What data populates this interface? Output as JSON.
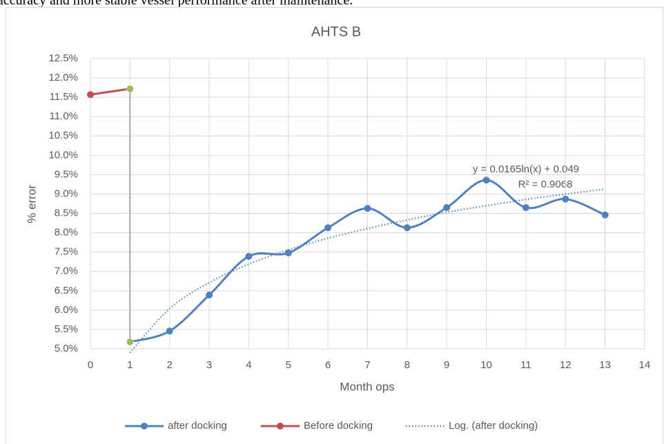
{
  "caption": "accuracy and more stable vessel performance after maintenance.",
  "chart_data": {
    "type": "line",
    "title": "AHTS B",
    "xlabel": "Month ops",
    "ylabel": "% error",
    "xlim": [
      0,
      14
    ],
    "xticks": [
      0,
      1,
      2,
      3,
      4,
      5,
      6,
      7,
      8,
      9,
      10,
      11,
      12,
      13,
      14
    ],
    "ylim": [
      5.0,
      12.5
    ],
    "yticks": [
      {
        "value": 5.0,
        "label": "5.0%"
      },
      {
        "value": 5.5,
        "label": "5.5%"
      },
      {
        "value": 6.0,
        "label": "6.0%"
      },
      {
        "value": 6.5,
        "label": "6.5%"
      },
      {
        "value": 7.0,
        "label": "7.0%"
      },
      {
        "value": 7.5,
        "label": "7.5%"
      },
      {
        "value": 8.0,
        "label": "8.0%"
      },
      {
        "value": 8.5,
        "label": "8.5%"
      },
      {
        "value": 9.0,
        "label": "9.0%"
      },
      {
        "value": 9.5,
        "label": "9.5%"
      },
      {
        "value": 10.0,
        "label": "10.0%"
      },
      {
        "value": 10.5,
        "label": "10.5%"
      },
      {
        "value": 11.0,
        "label": "11.0%"
      },
      {
        "value": 11.5,
        "label": "11.5%"
      },
      {
        "value": 12.0,
        "label": "12.0%"
      },
      {
        "value": 12.5,
        "label": "12.5%"
      }
    ],
    "grid": true,
    "series": [
      {
        "name": "after docking",
        "color": "#4f81bd",
        "x": [
          1,
          2,
          3,
          4,
          5,
          6,
          7,
          8,
          9,
          10,
          11,
          12,
          13
        ],
        "values": [
          5.18,
          5.46,
          6.39,
          7.39,
          7.48,
          8.13,
          8.63,
          8.13,
          8.65,
          9.36,
          8.65,
          8.87,
          8.46
        ]
      },
      {
        "name": "Before docking",
        "color": "#c0504d",
        "x": [
          0,
          1
        ],
        "values": [
          11.57,
          11.72
        ]
      },
      {
        "name": "Log. (after docking)",
        "color": "#4f81bd",
        "dashed": true,
        "x": [
          1,
          2,
          3,
          4,
          5,
          6,
          7,
          8,
          9,
          10,
          11,
          12,
          13
        ],
        "values": [
          4.9,
          6.04,
          6.71,
          7.19,
          7.56,
          7.86,
          8.11,
          8.33,
          8.53,
          8.7,
          8.86,
          9.0,
          9.13
        ]
      }
    ],
    "connector": {
      "color": "#a5a5a5",
      "marker_color": "#9bbb59",
      "x": [
        1,
        1
      ],
      "values": [
        11.72,
        5.18
      ]
    },
    "annotations": [
      "y = 0.0165ln(x) + 0.049",
      "R² = 0.9068"
    ],
    "legend": "bottom"
  }
}
